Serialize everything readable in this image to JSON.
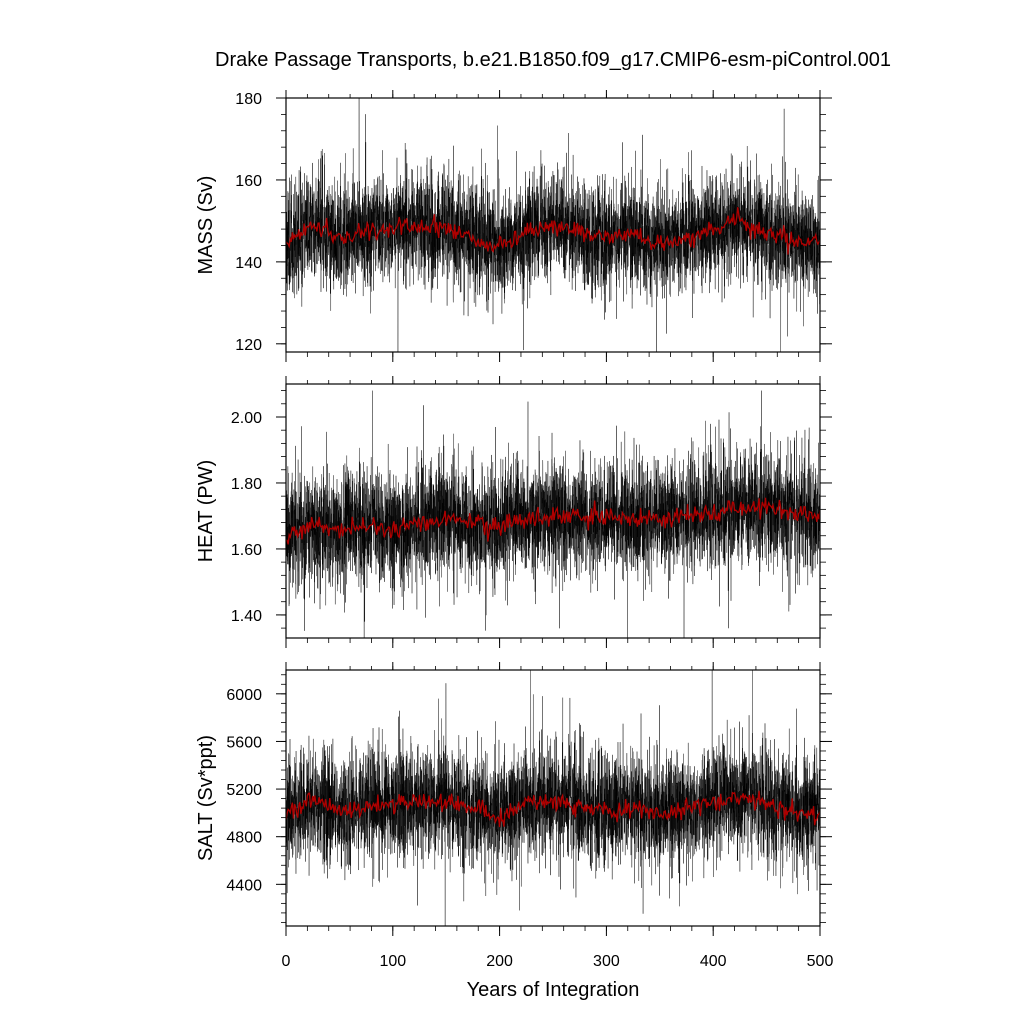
{
  "figure": {
    "title": "Drake Passage Transports, b.e21.B1850.f09_g17.CMIP6-esm-piControl.001",
    "xlabel": "Years of Integration"
  },
  "chart_data": [
    {
      "type": "line",
      "title": "",
      "xlabel": "",
      "ylabel": "MASS (Sv)",
      "xlim": [
        0,
        500
      ],
      "ylim": [
        118,
        180
      ],
      "xticks": [
        0,
        100,
        200,
        300,
        400,
        500
      ],
      "yticks": [
        120,
        140,
        160,
        180
      ],
      "ytick_labels": [
        "120",
        "140",
        "160",
        "180"
      ],
      "show_xtick_labels": false,
      "grid": false,
      "series": [
        {
          "name": "",
          "color": "#000000",
          "kind": "monthly",
          "mean": 147,
          "spread": 6.5,
          "min": 118,
          "max": 180,
          "seed": 11
        },
        {
          "name": "",
          "color": "#b00000",
          "kind": "annual-mean",
          "x": [
            0,
            25,
            50,
            75,
            100,
            125,
            150,
            175,
            200,
            225,
            250,
            275,
            300,
            325,
            350,
            375,
            400,
            425,
            450,
            475,
            500
          ],
          "y": [
            145,
            149,
            146,
            147,
            148,
            149,
            148,
            146,
            143,
            148,
            149,
            147,
            146,
            147,
            144,
            146,
            148,
            150,
            147,
            145,
            145
          ]
        }
      ]
    },
    {
      "type": "line",
      "title": "",
      "xlabel": "",
      "ylabel": "HEAT (PW)",
      "xlim": [
        0,
        500
      ],
      "ylim": [
        1.33,
        2.1
      ],
      "xticks": [
        0,
        100,
        200,
        300,
        400,
        500
      ],
      "yticks": [
        1.4,
        1.6,
        1.8,
        2.0
      ],
      "ytick_labels": [
        "1.40",
        "1.60",
        "1.80",
        "2.00"
      ],
      "show_xtick_labels": false,
      "grid": false,
      "series": [
        {
          "name": "",
          "color": "#000000",
          "kind": "monthly",
          "mean": 1.68,
          "spread": 0.085,
          "min": 1.33,
          "max": 2.08,
          "seed": 23
        },
        {
          "name": "",
          "color": "#b00000",
          "kind": "annual-mean",
          "x": [
            0,
            25,
            50,
            75,
            100,
            125,
            150,
            175,
            200,
            225,
            250,
            275,
            300,
            325,
            350,
            375,
            400,
            425,
            450,
            475,
            500
          ],
          "y": [
            1.64,
            1.67,
            1.66,
            1.67,
            1.66,
            1.68,
            1.69,
            1.68,
            1.67,
            1.69,
            1.7,
            1.69,
            1.7,
            1.69,
            1.69,
            1.7,
            1.71,
            1.72,
            1.73,
            1.71,
            1.7
          ]
        }
      ]
    },
    {
      "type": "line",
      "title": "",
      "xlabel": "",
      "ylabel": "SALT (Sv*ppt)",
      "xlim": [
        0,
        500
      ],
      "ylim": [
        4050,
        6200
      ],
      "xticks": [
        0,
        100,
        200,
        300,
        400,
        500
      ],
      "yticks": [
        4400,
        4800,
        5200,
        5600,
        6000
      ],
      "ytick_labels": [
        "4400",
        "4800",
        "5200",
        "5600",
        "6000"
      ],
      "show_xtick_labels": true,
      "xtick_labels": [
        "0",
        "100",
        "200",
        "300",
        "400",
        "500"
      ],
      "grid": false,
      "series": [
        {
          "name": "",
          "color": "#000000",
          "kind": "monthly",
          "mean": 5050,
          "spread": 230,
          "min": 4050,
          "max": 6200,
          "seed": 37
        },
        {
          "name": "",
          "color": "#b00000",
          "kind": "annual-mean",
          "x": [
            0,
            25,
            50,
            75,
            100,
            125,
            150,
            175,
            200,
            225,
            250,
            275,
            300,
            325,
            350,
            375,
            400,
            425,
            450,
            475,
            500
          ],
          "y": [
            5000,
            5100,
            5020,
            5050,
            5080,
            5100,
            5090,
            5040,
            4960,
            5080,
            5100,
            5060,
            5020,
            5040,
            4990,
            5030,
            5090,
            5140,
            5080,
            5010,
            4990
          ]
        }
      ]
    }
  ]
}
